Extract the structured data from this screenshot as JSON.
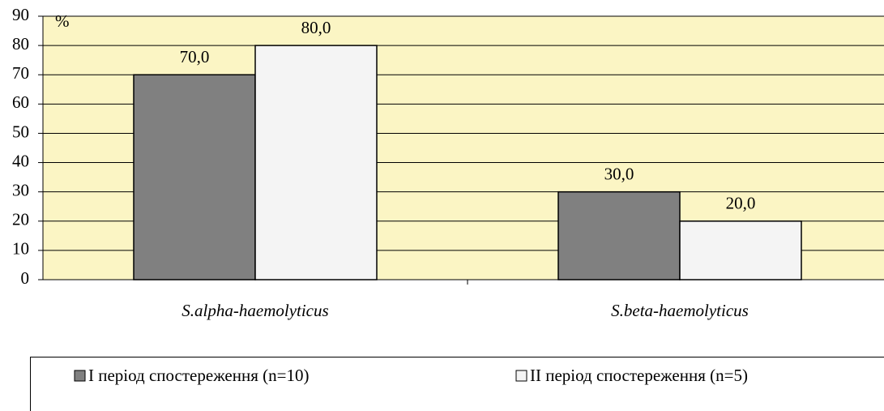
{
  "chart_data": {
    "type": "bar",
    "unit_label": "%",
    "categories": [
      "S.alpha-haemolyticus",
      "S.beta-haemolyticus"
    ],
    "series": [
      {
        "name": "I період спостереження (n=10)",
        "color": "#808080",
        "values": [
          70,
          30
        ],
        "value_labels": [
          "70,0",
          "30,0"
        ]
      },
      {
        "name": "II період спостереження (n=5)",
        "color": "#f4f4f4",
        "values": [
          80,
          20
        ],
        "value_labels": [
          "80,0",
          "20,0"
        ]
      }
    ],
    "ylim": [
      0,
      90
    ],
    "yticks": [
      0,
      10,
      20,
      30,
      40,
      50,
      60,
      70,
      80,
      90
    ],
    "grid": true,
    "background": "#fbf5c4",
    "legend": "bottom"
  }
}
